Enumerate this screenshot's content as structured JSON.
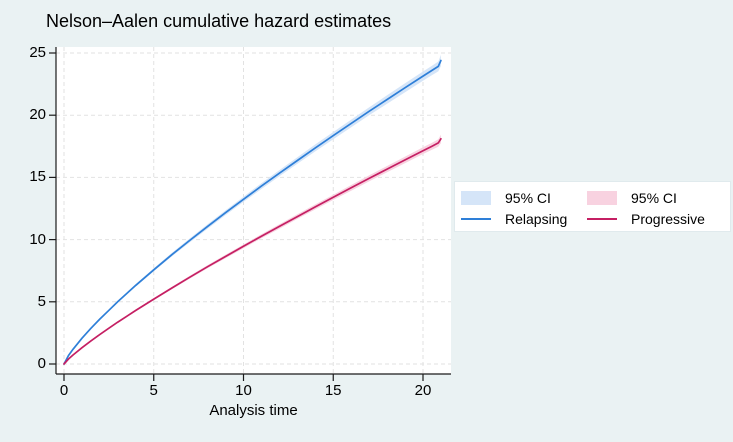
{
  "title": "Nelson–Aalen cumulative hazard estimates",
  "xaxis_title": "Analysis time",
  "colors": {
    "page_background": "#eaf2f3",
    "plot_background": "#ffffff",
    "gridline": "#e2e2e2",
    "axis": "#1a1a1a",
    "relapsing_line": "#2e7fd8",
    "relapsing_ci": "#d5e5f8",
    "progressive_line": "#c51f63",
    "progressive_ci": "#f8d2e0"
  },
  "legend": {
    "entries": [
      {
        "kind": "band",
        "label": "95% CI",
        "color": "#d5e5f8"
      },
      {
        "kind": "line",
        "label": "Relapsing",
        "color": "#2e7fd8"
      },
      {
        "kind": "band",
        "label": "95% CI",
        "color": "#f8d2e0"
      },
      {
        "kind": "line",
        "label": "Progressive",
        "color": "#c51f63"
      }
    ]
  },
  "chart_data": {
    "type": "line",
    "title": "Nelson–Aalen cumulative hazard estimates",
    "xlabel": "Analysis time",
    "ylabel": "",
    "xlim": [
      0,
      21.5
    ],
    "ylim": [
      0,
      25
    ],
    "xticks": [
      0,
      5,
      10,
      15,
      20
    ],
    "yticks": [
      0,
      5,
      10,
      15,
      20,
      25
    ],
    "grid": "dashed both axes",
    "legend_position": "right outside plot",
    "series": [
      {
        "name": "Relapsing",
        "ci_label": "95% CI",
        "line_color": "#2e7fd8",
        "ci_color": "#d5e5f8",
        "x": [
          0,
          0.25,
          0.5,
          1,
          1.5,
          2,
          2.5,
          3,
          4,
          5,
          6,
          7,
          8,
          9,
          10,
          11,
          12,
          13,
          14,
          15,
          16,
          17,
          18,
          19,
          20,
          20.5,
          20.85,
          21
        ],
        "y": [
          0,
          0.68,
          1.18,
          2.07,
          2.87,
          3.62,
          4.32,
          5.02,
          6.33,
          7.57,
          8.78,
          9.93,
          11.06,
          12.16,
          13.24,
          14.3,
          15.34,
          16.36,
          17.37,
          18.36,
          19.34,
          20.31,
          21.26,
          22.21,
          23.14,
          23.6,
          23.92,
          24.4
        ],
        "ci_halfwidth": [
          0,
          0.01,
          0.02,
          0.03,
          0.05,
          0.06,
          0.07,
          0.08,
          0.1,
          0.12,
          0.14,
          0.16,
          0.18,
          0.19,
          0.21,
          0.23,
          0.25,
          0.26,
          0.28,
          0.29,
          0.31,
          0.32,
          0.34,
          0.36,
          0.37,
          0.38,
          0.4,
          0.45
        ]
      },
      {
        "name": "Progressive",
        "ci_label": "95% CI",
        "line_color": "#c51f63",
        "ci_color": "#f8d2e0",
        "x": [
          0,
          0.25,
          0.5,
          1,
          1.5,
          2,
          2.5,
          3,
          4,
          5,
          6,
          7,
          8,
          9,
          10,
          11,
          12,
          13,
          14,
          15,
          16,
          17,
          18,
          19,
          20,
          20.5,
          20.85,
          21
        ],
        "y": [
          0,
          0.4,
          0.72,
          1.31,
          1.86,
          2.38,
          2.88,
          3.37,
          4.31,
          5.22,
          6.1,
          6.97,
          7.82,
          8.64,
          9.46,
          10.27,
          11.06,
          11.85,
          12.63,
          13.4,
          14.16,
          14.92,
          15.67,
          16.41,
          17.15,
          17.51,
          17.77,
          18.1
        ],
        "ci_halfwidth": [
          0,
          0.01,
          0.01,
          0.02,
          0.03,
          0.04,
          0.05,
          0.05,
          0.07,
          0.08,
          0.1,
          0.11,
          0.13,
          0.14,
          0.15,
          0.16,
          0.18,
          0.19,
          0.2,
          0.21,
          0.23,
          0.24,
          0.25,
          0.26,
          0.27,
          0.28,
          0.3,
          0.34
        ]
      }
    ]
  }
}
